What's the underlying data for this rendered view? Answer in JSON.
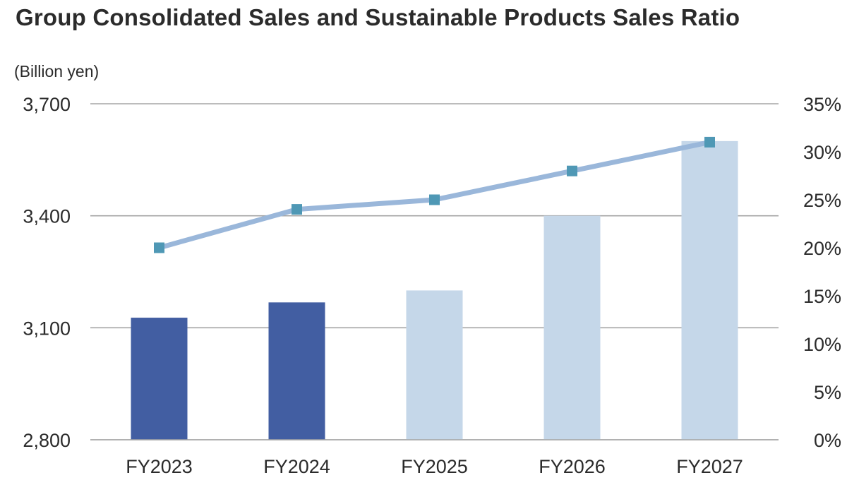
{
  "chart_data": {
    "type": "bar",
    "title": "Group Consolidated Sales and Sustainable Products Sales Ratio",
    "ylabel": "(Billion yen)",
    "categories": [
      "FY2023",
      "FY2024",
      "FY2025",
      "FY2026",
      "FY2027"
    ],
    "series": [
      {
        "type": "bar",
        "axis": "left",
        "values": [
          3127,
          3168,
          3200,
          3400,
          3600
        ],
        "colors": [
          "#425ea2",
          "#425ea2",
          "#c5d7e9",
          "#c5d7e9",
          "#c5d7e9"
        ]
      },
      {
        "type": "line",
        "axis": "right",
        "values": [
          20,
          24,
          25,
          28,
          31
        ],
        "line_color": "#9ab7da",
        "marker_color": "#4f98b5",
        "marker": "square"
      }
    ],
    "left_axis": {
      "ylim": [
        2800,
        3700
      ],
      "ticks": [
        2800,
        3100,
        3400,
        3700
      ],
      "tick_labels": [
        "2,800",
        "3,100",
        "3,400",
        "3,700"
      ]
    },
    "right_axis": {
      "ylim": [
        0,
        35
      ],
      "ticks": [
        0,
        5,
        10,
        15,
        20,
        25,
        30,
        35
      ],
      "tick_labels": [
        "0%",
        "5%",
        "10%",
        "15%",
        "20%",
        "25%",
        "30%",
        "35%"
      ]
    },
    "grid": "horizontal at left-axis ticks",
    "legend": "none",
    "grid_color": "#a6a6a6",
    "text_color": "#2b2b2b"
  }
}
